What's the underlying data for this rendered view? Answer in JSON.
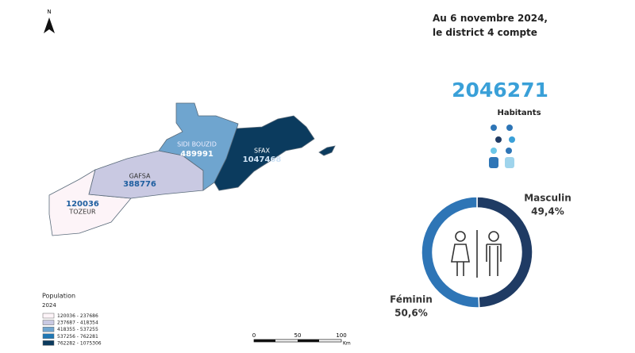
{
  "map": {
    "north": "N",
    "regions": [
      {
        "name": "TOZEUR",
        "population": 120036
      },
      {
        "name": "GAFSA",
        "population": 388776
      },
      {
        "name": "SIDI BOUZID",
        "population": 489991
      },
      {
        "name": "SFAX",
        "population": 1047468
      }
    ],
    "legend": {
      "title": "Population",
      "subtitle": "2024",
      "classes": [
        {
          "label": "120036 - 237686",
          "color": "#fdf4f8"
        },
        {
          "label": "237687 - 418354",
          "color": "#c9c9e2"
        },
        {
          "label": "418355 - 537255",
          "color": "#6fa5cf"
        },
        {
          "label": "537256 - 762281",
          "color": "#1f77b4"
        },
        {
          "label": "762282 - 1075306",
          "color": "#0b3b5e"
        }
      ]
    },
    "scale": {
      "ticks": [
        0,
        50,
        100
      ],
      "unit": "Km"
    }
  },
  "summary": {
    "text": "Au 6 novembre 2024, le district 4 compte",
    "total": 2046271,
    "unit": "Habitants"
  },
  "chart_data": {
    "type": "pie",
    "categories": [
      "Masculin",
      "Féminin"
    ],
    "values": [
      49.4,
      50.6
    ],
    "value_labels": [
      "49,4%",
      "50,6%"
    ],
    "colors": [
      "#1f3b64",
      "#2e75b6"
    ]
  }
}
